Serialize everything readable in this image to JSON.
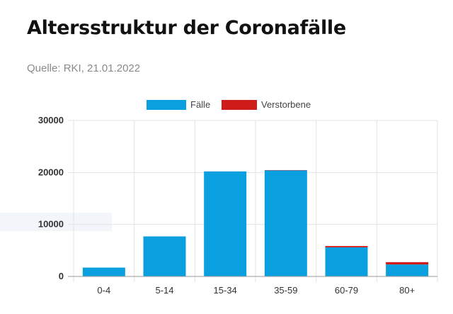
{
  "page": {
    "title": "Altersstruktur der Coronafälle",
    "source": "Quelle: RKI, 21.01.2022"
  },
  "colors": {
    "faelle": "#0aa0df",
    "verstorbene": "#d01b1b",
    "grid": "#e3e3e3",
    "axis": "#999999"
  },
  "chart_data": {
    "type": "bar",
    "stacked": true,
    "categories": [
      "0-4",
      "5-14",
      "15-34",
      "35-59",
      "60-79",
      "80+"
    ],
    "series": [
      {
        "name": "Fälle",
        "values": [
          1700,
          7700,
          20200,
          20400,
          5600,
          2300
        ]
      },
      {
        "name": "Verstorbene",
        "values": [
          0,
          0,
          5,
          60,
          250,
          450
        ]
      }
    ],
    "yticks": [
      0,
      10000,
      20000,
      30000
    ],
    "ylim": [
      0,
      30000
    ],
    "legend_position": "top-center",
    "grid": true
  }
}
